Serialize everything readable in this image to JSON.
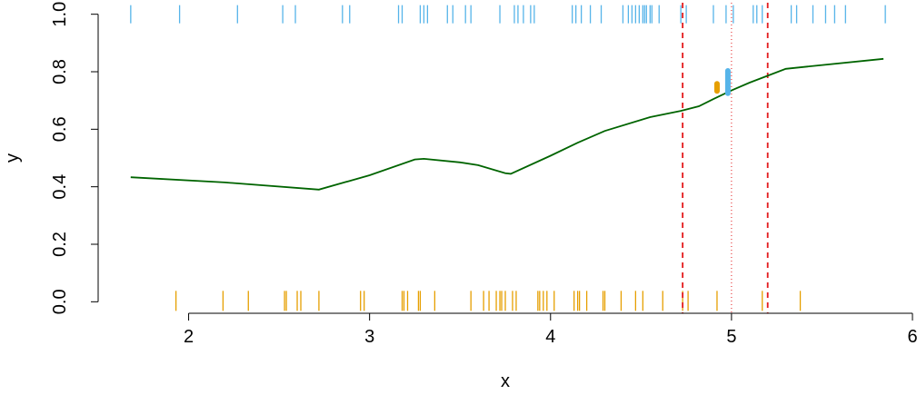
{
  "chart_data": {
    "type": "line",
    "xlabel": "x",
    "ylabel": "y",
    "xlim": [
      1.5,
      6.0
    ],
    "ylim": [
      -0.04,
      1.04
    ],
    "x_ticks": [
      2,
      3,
      4,
      5,
      6
    ],
    "y_ticks": [
      0.0,
      0.2,
      0.4,
      0.6,
      0.8,
      1.0
    ],
    "x_tick_labels": [
      "2",
      "3",
      "4",
      "5",
      "6"
    ],
    "y_tick_labels": [
      "0.0",
      "0.2",
      "0.4",
      "0.6",
      "0.8",
      "1.0"
    ],
    "grid": false,
    "colors": {
      "curve": "#006400",
      "rug_one": "#56b4e9",
      "rug_zero": "#e69f00",
      "interval": "#e31a1c",
      "point_line": "#e31a1c",
      "axis": "#000000"
    },
    "curve": {
      "x": [
        1.68,
        2.2,
        2.72,
        3.0,
        3.25,
        3.3,
        3.5,
        3.6,
        3.75,
        3.78,
        4.0,
        4.15,
        4.3,
        4.55,
        4.72,
        4.82,
        4.9,
        5.0,
        5.1,
        5.3,
        5.42,
        5.84
      ],
      "y": [
        0.433,
        0.415,
        0.39,
        0.44,
        0.495,
        0.497,
        0.485,
        0.475,
        0.447,
        0.445,
        0.508,
        0.553,
        0.594,
        0.642,
        0.664,
        0.68,
        0.705,
        0.735,
        0.762,
        0.81,
        0.818,
        0.845
      ]
    },
    "rug_y1": [
      1.68,
      1.95,
      2.27,
      2.52,
      2.59,
      2.85,
      2.89,
      3.16,
      3.18,
      3.28,
      3.3,
      3.32,
      3.43,
      3.46,
      3.53,
      3.56,
      3.72,
      3.8,
      3.82,
      3.85,
      3.89,
      3.91,
      4.12,
      4.14,
      4.17,
      4.22,
      4.28,
      4.4,
      4.43,
      4.45,
      4.47,
      4.49,
      4.51,
      4.52,
      4.53,
      4.55,
      4.56,
      4.6,
      4.72,
      4.75,
      4.9,
      4.97,
      5.01,
      5.12,
      5.14,
      5.17,
      5.33,
      5.36,
      5.45,
      5.52,
      5.57,
      5.63,
      5.85
    ],
    "rug_y0": [
      1.93,
      2.19,
      2.33,
      2.53,
      2.54,
      2.6,
      2.62,
      2.72,
      2.95,
      2.97,
      3.18,
      3.19,
      3.21,
      3.27,
      3.28,
      3.36,
      3.56,
      3.63,
      3.66,
      3.7,
      3.72,
      3.73,
      3.75,
      3.79,
      3.81,
      3.93,
      3.94,
      3.96,
      3.98,
      4.02,
      4.13,
      4.15,
      4.16,
      4.2,
      4.29,
      4.3,
      4.39,
      4.47,
      4.51,
      4.62,
      4.73,
      4.76,
      4.92,
      5.17,
      5.38
    ],
    "interval_x": [
      4.73,
      5.2
    ],
    "point_x": 5.0,
    "markers": [
      {
        "x": 4.92,
        "y_low": 0.733,
        "y_high": 0.758,
        "color": "#e69f00"
      },
      {
        "x": 4.98,
        "y_low": 0.725,
        "y_high": 0.803,
        "color": "#56b4e9"
      }
    ]
  }
}
